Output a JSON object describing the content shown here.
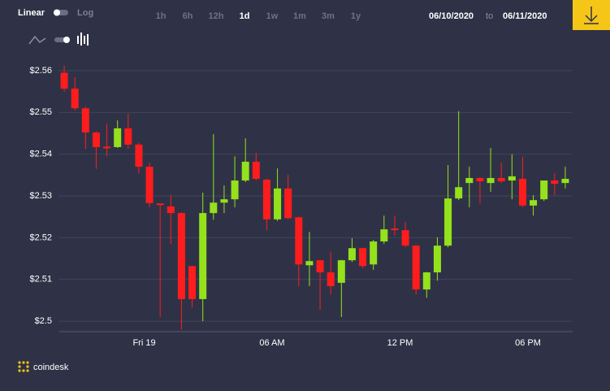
{
  "ui": {
    "scale_modes": [
      "Linear",
      "Log"
    ],
    "timeframes": [
      "1h",
      "6h",
      "12h",
      "1d",
      "1w",
      "1m",
      "3m",
      "1y"
    ],
    "active_timeframe": 3,
    "date_from": "06/10/2020",
    "date_separator": "to",
    "date_to": "06/11/2020",
    "brand": "coindesk"
  },
  "chart_data": {
    "type": "candlestick",
    "categories": [
      null,
      null,
      null,
      null,
      null,
      null,
      null,
      null,
      "Fri 19",
      null,
      null,
      null,
      null,
      null,
      null,
      null,
      null,
      null,
      null,
      null,
      "06 AM",
      null,
      null,
      null,
      null,
      null,
      null,
      null,
      null,
      null,
      null,
      null,
      "12 PM",
      null,
      null,
      null,
      null,
      null,
      null,
      null,
      null,
      null,
      null,
      null,
      "06 PM",
      null,
      null,
      null
    ],
    "series": [
      {
        "name": "open",
        "values": [
          2.5595,
          2.5557,
          2.551,
          2.5452,
          2.5418,
          2.5417,
          2.5462,
          2.5423,
          2.537,
          2.5282,
          2.5275,
          2.5259,
          2.5132,
          2.5053,
          2.5259,
          2.5284,
          2.5292,
          2.5337,
          2.5382,
          2.5339,
          2.5244,
          2.5318,
          2.5249,
          2.5134,
          2.5146,
          2.5117,
          2.5092,
          2.5146,
          2.5175,
          2.5136,
          2.5191,
          2.5222,
          2.5218,
          2.5181,
          2.5076,
          2.5117,
          2.5181,
          2.5294,
          2.5331,
          2.5343,
          2.5331,
          2.5343,
          2.5337,
          2.5341,
          2.5277,
          2.5292,
          2.5337,
          2.5331
        ]
      },
      {
        "name": "high",
        "values": [
          2.5612,
          2.5585,
          2.5514,
          2.5455,
          2.5473,
          2.5481,
          2.5497,
          2.5427,
          2.538,
          2.5282,
          2.5302,
          2.5261,
          2.5133,
          2.5308,
          2.5448,
          2.5325,
          2.5395,
          2.5438,
          2.5403,
          2.5341,
          2.5366,
          2.5351,
          2.525,
          2.5214,
          2.5147,
          2.5166,
          2.5147,
          2.5199,
          2.5176,
          2.5195,
          2.5253,
          2.5253,
          2.5238,
          2.5183,
          2.5118,
          2.5201,
          2.5374,
          2.5503,
          2.537,
          2.5345,
          2.5415,
          2.538,
          2.54,
          2.5394,
          2.5302,
          2.5337,
          2.5355,
          2.537
        ]
      },
      {
        "name": "low",
        "values": [
          2.555,
          2.5505,
          2.5413,
          2.5365,
          2.5395,
          2.5415,
          2.5413,
          2.5354,
          2.5273,
          2.501,
          2.5185,
          2.498,
          2.5033,
          2.5,
          2.5243,
          2.5259,
          2.5273,
          2.5333,
          2.5337,
          2.5218,
          2.524,
          2.5244,
          2.5084,
          2.5084,
          2.5027,
          2.5064,
          2.501,
          2.5142,
          2.5127,
          2.5123,
          2.5185,
          2.5205,
          2.5177,
          2.5064,
          2.5056,
          2.5097,
          2.5177,
          2.529,
          2.5273,
          2.5282,
          2.531,
          2.5331,
          2.5292,
          2.5273,
          2.5253,
          2.5288,
          2.5302,
          2.5318
        ]
      },
      {
        "name": "close",
        "values": [
          2.5557,
          2.551,
          2.5452,
          2.5417,
          2.5416,
          2.5462,
          2.5423,
          2.537,
          2.5283,
          2.528,
          2.5259,
          2.5053,
          2.5053,
          2.5259,
          2.5284,
          2.5292,
          2.5337,
          2.5382,
          2.5341,
          2.5244,
          2.5318,
          2.5247,
          2.5136,
          2.5144,
          2.5117,
          2.5084,
          2.5146,
          2.5175,
          2.5132,
          2.5191,
          2.522,
          2.522,
          2.5181,
          2.5076,
          2.5117,
          2.5181,
          2.5294,
          2.5321,
          2.5343,
          2.5335,
          2.5343,
          2.5335,
          2.5347,
          2.5277,
          2.529,
          2.5337,
          2.5329,
          2.5341
        ]
      }
    ],
    "up_color": "#94e11c",
    "down_color": "#ff1c1c",
    "ylim": [
      2.4975,
      2.5633
    ],
    "yticks": [
      {
        "value": 2.5,
        "label": "$2.5"
      },
      {
        "value": 2.51,
        "label": "$2.51"
      },
      {
        "value": 2.52,
        "label": "$2.52"
      },
      {
        "value": 2.53,
        "label": "$2.53"
      },
      {
        "value": 2.54,
        "label": "$2.54"
      },
      {
        "value": 2.55,
        "label": "$2.55"
      },
      {
        "value": 2.56,
        "label": "$2.56"
      }
    ],
    "grid": true
  }
}
